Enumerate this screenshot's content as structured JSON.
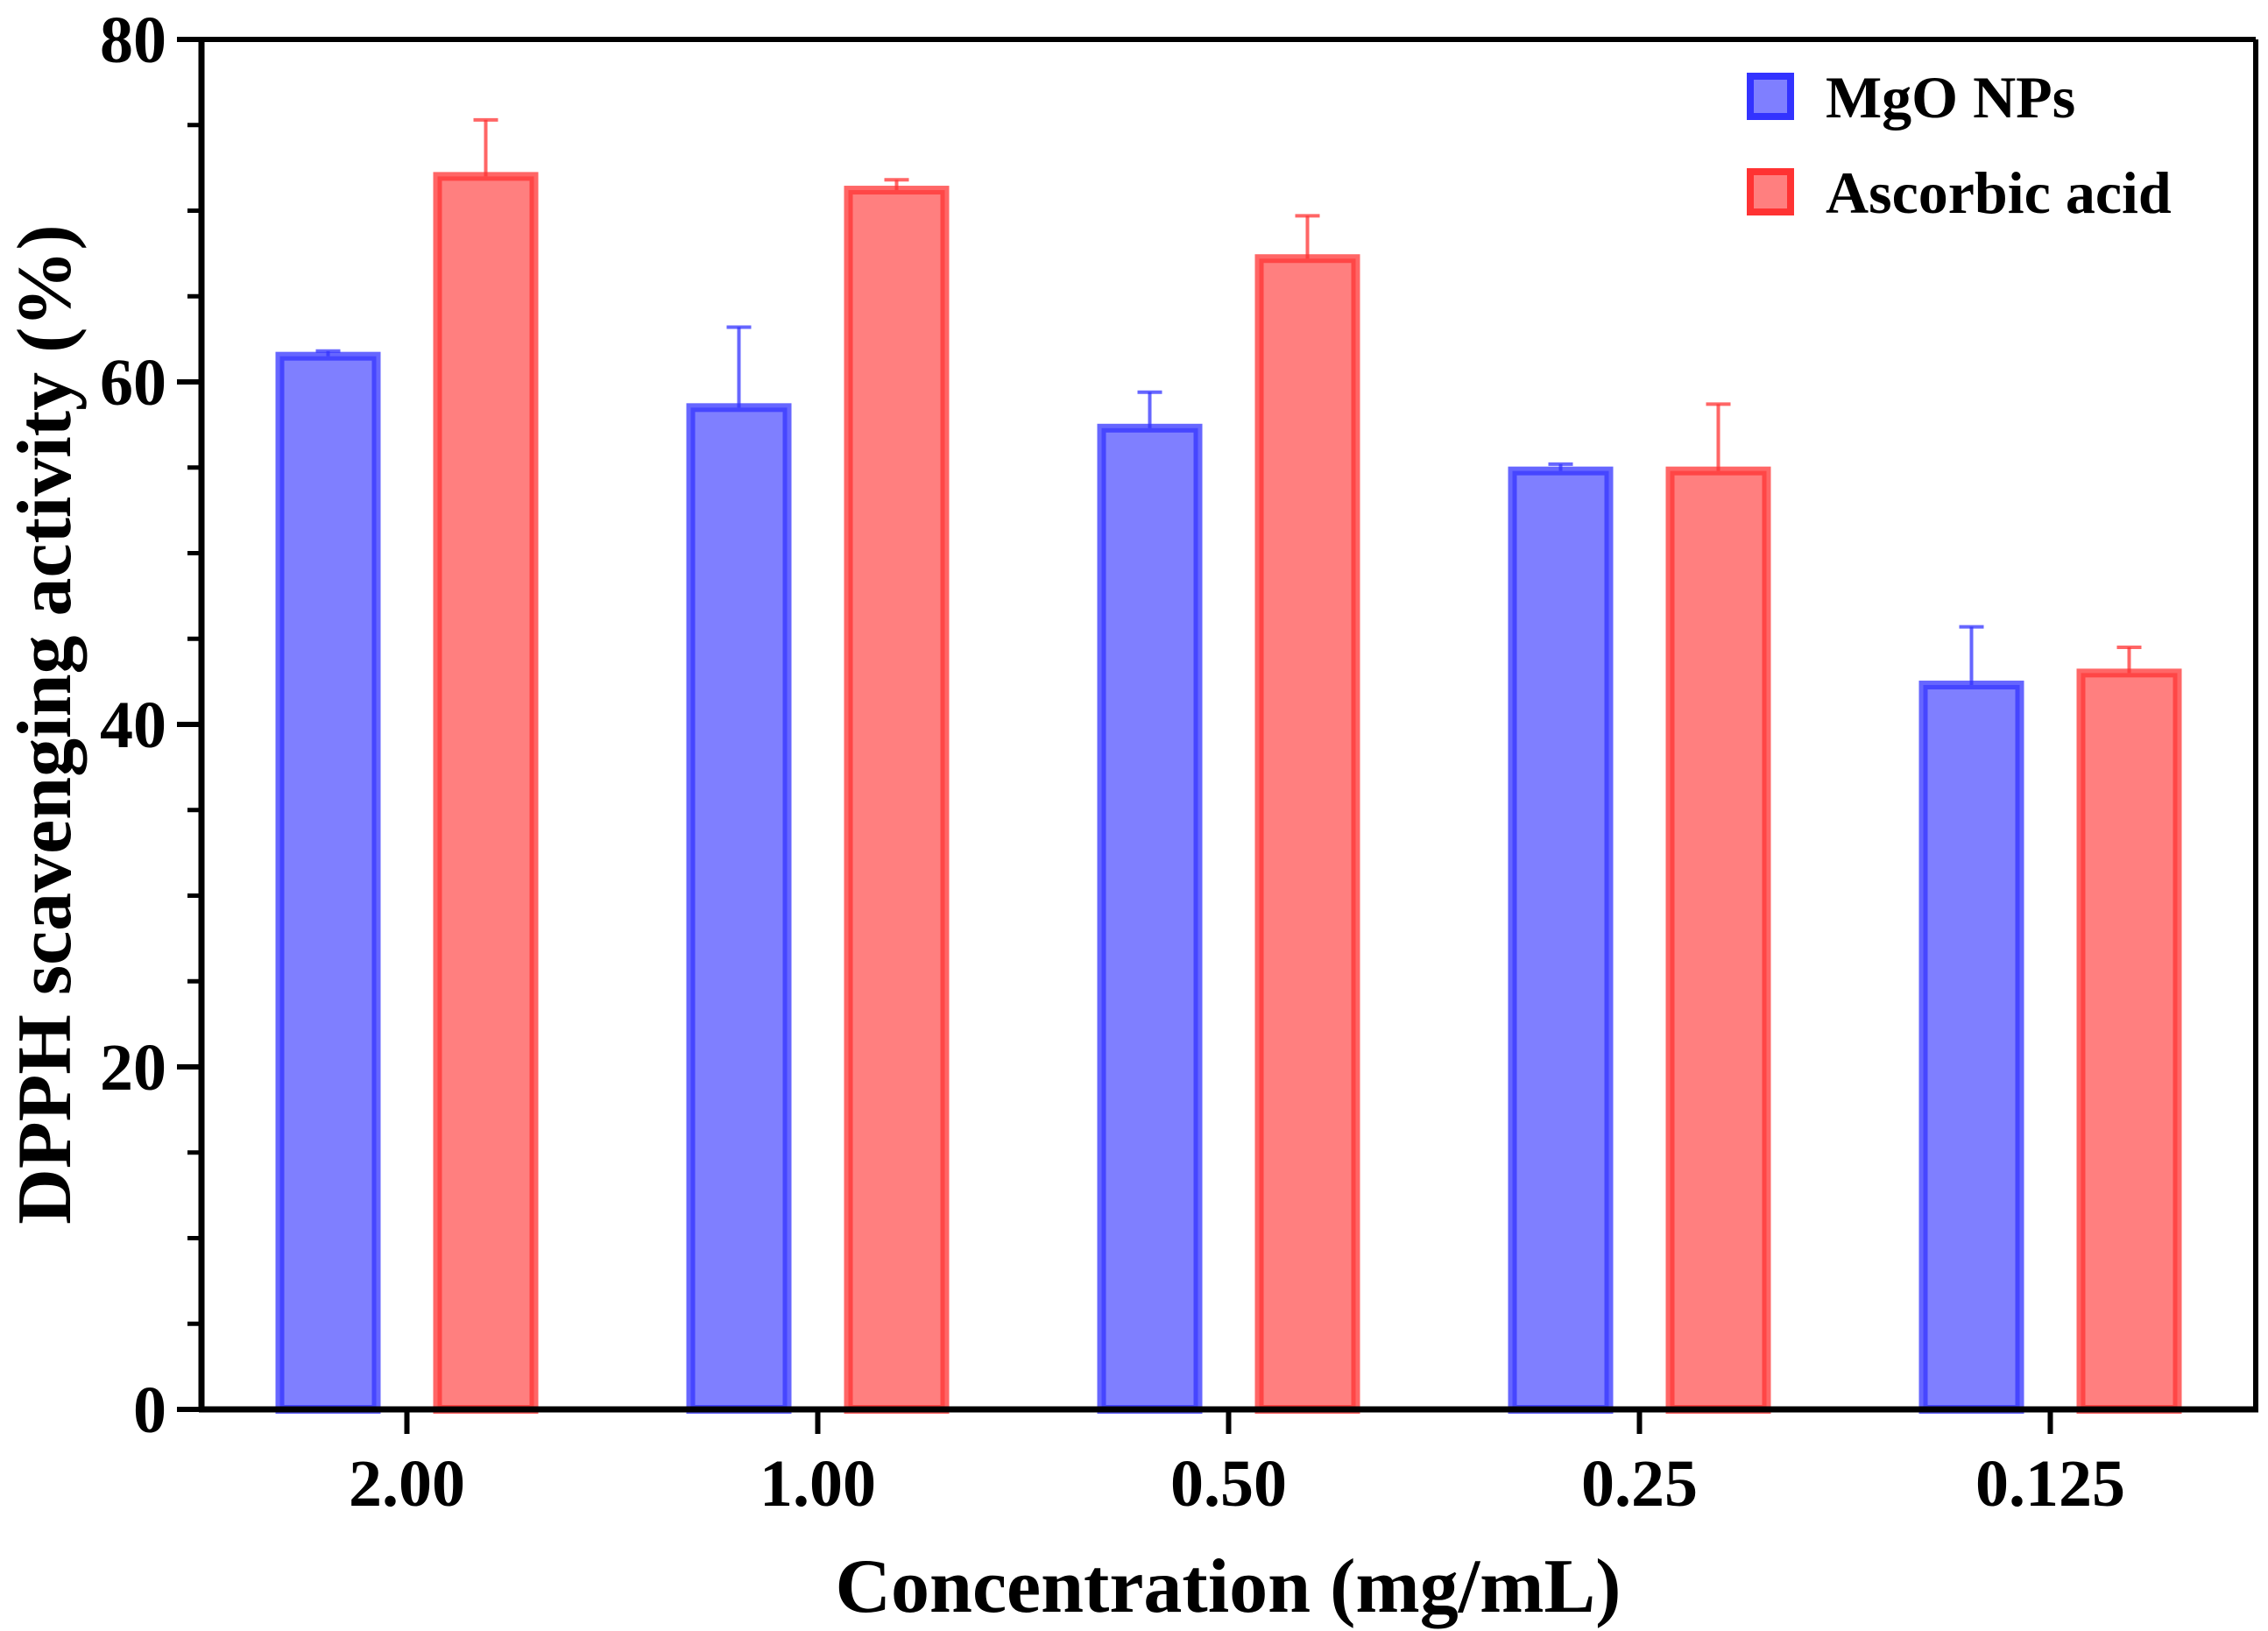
{
  "chart_data": {
    "type": "bar",
    "title": "",
    "xlabel": "Concentration (mg/mL)",
    "ylabel": "DPPH scavenging activity (%)",
    "ylim": [
      0,
      80
    ],
    "yticks": [
      0,
      20,
      40,
      60,
      80
    ],
    "grid": false,
    "legend_position": "top-right",
    "categories": [
      "2.00",
      "1.00",
      "0.50",
      "0.25",
      "0.125"
    ],
    "series": [
      {
        "name": "MgO NPs",
        "color": "#7f7fff",
        "edge_color": "#3333ff",
        "values": [
          61.5,
          58.5,
          57.3,
          54.8,
          42.3
        ],
        "errors": [
          0.3,
          4.7,
          2.1,
          0.4,
          3.4
        ]
      },
      {
        "name": "Ascorbic acid",
        "color": "#ff7f7f",
        "edge_color": "#ff3333",
        "values": [
          72.0,
          71.2,
          67.2,
          54.8,
          43.0
        ],
        "errors": [
          3.3,
          0.6,
          2.5,
          3.9,
          1.5
        ]
      }
    ]
  }
}
